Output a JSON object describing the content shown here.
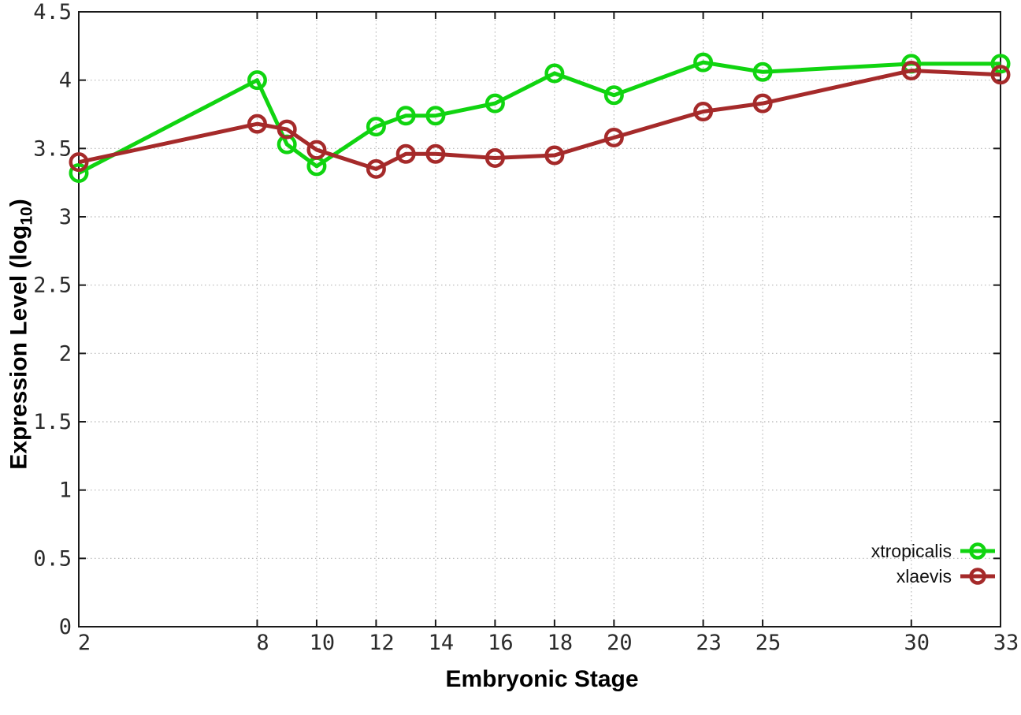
{
  "chart_data": {
    "type": "line",
    "title": "",
    "xlabel": "Embryonic Stage",
    "ylabel": "Expression Level (log10)",
    "ylabel_display": {
      "main": "Expression Level (log",
      "sub": "10",
      "close": ")"
    },
    "xlim": [
      2,
      33
    ],
    "ylim": [
      0,
      4.5
    ],
    "grid": true,
    "legend_position": "bottom-right-inside",
    "x_ticks": [
      2,
      8,
      10,
      12,
      14,
      16,
      18,
      20,
      23,
      25,
      30,
      33
    ],
    "x_tick_labels": [
      "2",
      "8",
      "10",
      "12",
      "14",
      "16",
      "18",
      "20",
      "23",
      "25",
      "30",
      "33"
    ],
    "y_ticks": [
      0,
      0.5,
      1,
      1.5,
      2,
      2.5,
      3,
      3.5,
      4,
      4.5
    ],
    "y_tick_labels": [
      "0",
      "0.5",
      "1",
      "1.5",
      "2",
      "2.5",
      "3",
      "3.5",
      "4",
      "4.5"
    ],
    "x": [
      2,
      8,
      9,
      10,
      12,
      13,
      14,
      16,
      18,
      20,
      23,
      25,
      30,
      33
    ],
    "series": [
      {
        "name": "xtropicalis",
        "color": "#10D410",
        "marker": "open-circle",
        "values": [
          3.32,
          4.0,
          3.53,
          3.37,
          3.66,
          3.74,
          3.74,
          3.83,
          4.05,
          3.89,
          4.13,
          4.06,
          4.12,
          4.12
        ]
      },
      {
        "name": "xlaevis",
        "color": "#A52A2A",
        "marker": "open-circle",
        "values": [
          3.4,
          3.68,
          3.64,
          3.49,
          3.35,
          3.46,
          3.46,
          3.43,
          3.45,
          3.58,
          3.77,
          3.83,
          4.07,
          4.04
        ]
      }
    ]
  },
  "styles": {
    "background": "#ffffff",
    "grid_color": "#b5b5b5",
    "axis_color": "#1a1a1a",
    "tick_label_color": "#2b2b2b",
    "label_color": "#000000"
  }
}
